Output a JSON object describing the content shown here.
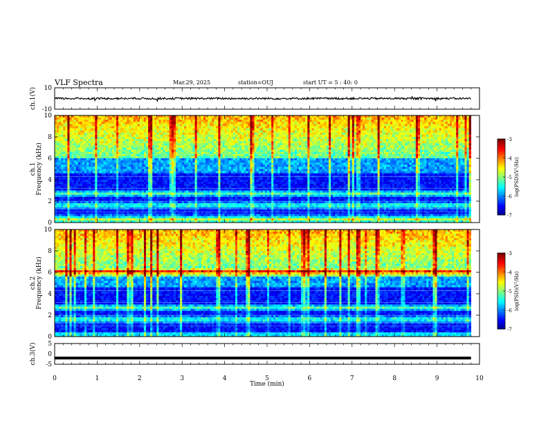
{
  "header": {
    "title": "VLF Spectra",
    "date": "Mar.29, 2025",
    "station": "station=OUJ",
    "start_ut": "start UT =  5 : 40: 0"
  },
  "chart_data": [
    {
      "type": "line",
      "panel": "ch1-waveform",
      "ylabel": "ch.1(V)",
      "ylim": [
        -10,
        10
      ],
      "yticks": [
        "10",
        "-10"
      ],
      "xlim": [
        0,
        10
      ],
      "series": [
        {
          "values_note": "noise trace near 0 V with sparse spikes",
          "baseline": 0
        }
      ]
    },
    {
      "type": "heatmap",
      "panel": "ch1-spectrogram",
      "ylabel": "ch.1\nFrequency (kHz)",
      "ylabel_line1": "ch.1",
      "ylabel_line2": "Frequency (kHz)",
      "ylim": [
        0,
        10
      ],
      "yticks": [
        "0",
        "2",
        "4",
        "6",
        "8",
        "10"
      ],
      "xlim": [
        0,
        9.8
      ],
      "colorbar": {
        "label": "log(PSD)(V²/Hz)",
        "range": [
          -7,
          -3
        ],
        "ticks": [
          "-3",
          "-4",
          "-5",
          "-6",
          "-7"
        ]
      },
      "bands_khz": [
        2.7,
        1.6,
        0.4
      ]
    },
    {
      "type": "heatmap",
      "panel": "ch2-spectrogram",
      "ylabel_line1": "ch.2",
      "ylabel_line2": "Frequency (kHz)",
      "ylim": [
        0,
        10
      ],
      "yticks": [
        "0",
        "2",
        "4",
        "6",
        "8",
        "10"
      ],
      "xlim": [
        0,
        9.8
      ],
      "colorbar": {
        "label": "log(PSD)(V²/Hz)",
        "range": [
          -7,
          -3
        ],
        "ticks": [
          "-3",
          "-4",
          "-5",
          "-6",
          "-7"
        ]
      },
      "bands_khz": [
        2.7,
        6.0,
        1.6
      ]
    },
    {
      "type": "line",
      "panel": "ch3-waveform",
      "ylabel": "ch.3(V)",
      "ylim": [
        -5,
        5
      ],
      "yticks": [
        "5",
        "0",
        "-5"
      ],
      "xlim": [
        0,
        10
      ],
      "series": [
        {
          "values_note": "flat trace",
          "baseline": -2
        }
      ]
    }
  ],
  "xaxis": {
    "label": "Time (min)",
    "ticks": [
      "0",
      "1",
      "2",
      "3",
      "4",
      "5",
      "6",
      "7",
      "8",
      "9",
      "10"
    ],
    "range": [
      0,
      10
    ]
  },
  "colors": {
    "low": "#00007f",
    "high": "#ff0000"
  }
}
